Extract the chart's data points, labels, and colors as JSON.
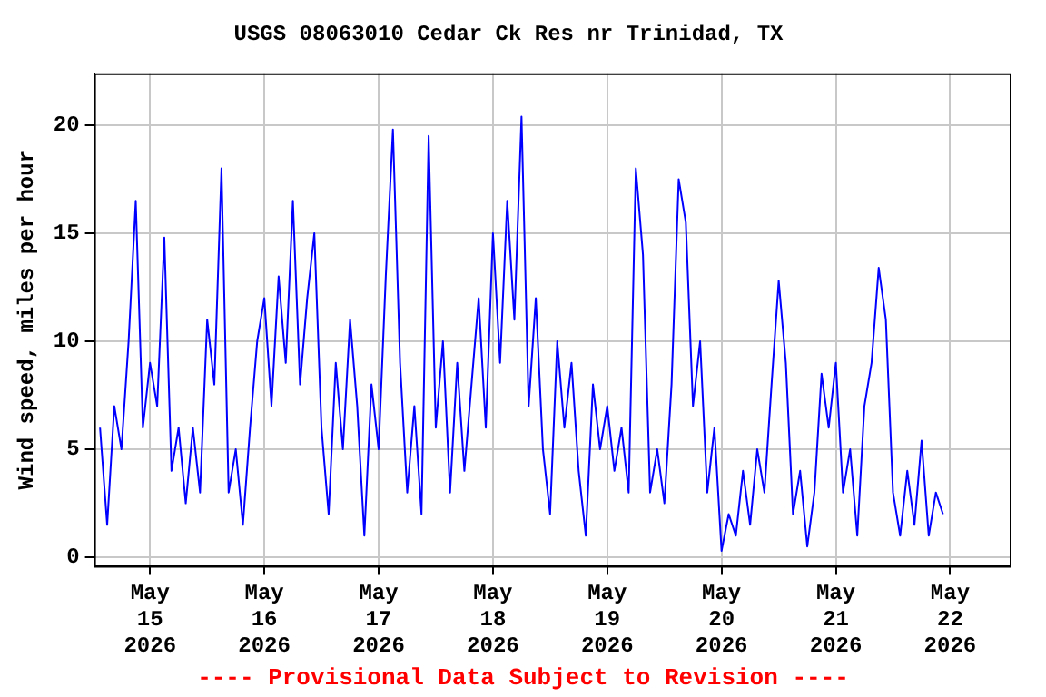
{
  "chart_data": {
    "type": "line",
    "title": "USGS 08063010 Cedar Ck Res nr Trinidad, TX",
    "ylabel": "Wind speed, miles per hour",
    "annotations": [
      "---- Provisional Data Subject to Revision ----"
    ],
    "x": [
      "2026-05-14T13:30",
      "2026-05-14T15:00",
      "2026-05-14T16:30",
      "2026-05-14T18:00",
      "2026-05-14T19:30",
      "2026-05-14T21:00",
      "2026-05-14T22:30",
      "2026-05-15T00:00",
      "2026-05-15T01:30",
      "2026-05-15T03:00",
      "2026-05-15T04:30",
      "2026-05-15T06:00",
      "2026-05-15T07:30",
      "2026-05-15T09:00",
      "2026-05-15T10:30",
      "2026-05-15T12:00",
      "2026-05-15T13:30",
      "2026-05-15T15:00",
      "2026-05-15T16:30",
      "2026-05-15T18:00",
      "2026-05-15T19:30",
      "2026-05-15T21:00",
      "2026-05-15T22:30",
      "2026-05-16T00:00",
      "2026-05-16T01:30",
      "2026-05-16T03:00",
      "2026-05-16T04:30",
      "2026-05-16T06:00",
      "2026-05-16T07:30",
      "2026-05-16T09:00",
      "2026-05-16T10:30",
      "2026-05-16T12:00",
      "2026-05-16T13:30",
      "2026-05-16T15:00",
      "2026-05-16T16:30",
      "2026-05-16T18:00",
      "2026-05-16T19:30",
      "2026-05-16T21:00",
      "2026-05-16T22:30",
      "2026-05-17T00:00",
      "2026-05-17T01:30",
      "2026-05-17T03:00",
      "2026-05-17T04:30",
      "2026-05-17T06:00",
      "2026-05-17T07:30",
      "2026-05-17T09:00",
      "2026-05-17T10:30",
      "2026-05-17T12:00",
      "2026-05-17T13:30",
      "2026-05-17T15:00",
      "2026-05-17T16:30",
      "2026-05-17T18:00",
      "2026-05-17T19:30",
      "2026-05-17T21:00",
      "2026-05-17T22:30",
      "2026-05-18T00:00",
      "2026-05-18T01:30",
      "2026-05-18T03:00",
      "2026-05-18T04:30",
      "2026-05-18T06:00",
      "2026-05-18T07:30",
      "2026-05-18T09:00",
      "2026-05-18T10:30",
      "2026-05-18T12:00",
      "2026-05-18T13:30",
      "2026-05-18T15:00",
      "2026-05-18T16:30",
      "2026-05-18T18:00",
      "2026-05-18T19:30",
      "2026-05-18T21:00",
      "2026-05-18T22:30",
      "2026-05-19T00:00",
      "2026-05-19T01:30",
      "2026-05-19T03:00",
      "2026-05-19T04:30",
      "2026-05-19T06:00",
      "2026-05-19T07:30",
      "2026-05-19T09:00",
      "2026-05-19T10:30",
      "2026-05-19T12:00",
      "2026-05-19T13:30",
      "2026-05-19T15:00",
      "2026-05-19T16:30",
      "2026-05-19T18:00",
      "2026-05-19T19:30",
      "2026-05-19T21:00",
      "2026-05-19T22:30",
      "2026-05-20T00:00",
      "2026-05-20T01:30",
      "2026-05-20T03:00",
      "2026-05-20T04:30",
      "2026-05-20T06:00",
      "2026-05-20T07:30",
      "2026-05-20T09:00",
      "2026-05-20T10:30",
      "2026-05-20T12:00",
      "2026-05-20T13:30",
      "2026-05-20T15:00",
      "2026-05-20T16:30",
      "2026-05-20T18:00",
      "2026-05-20T19:30",
      "2026-05-20T21:00",
      "2026-05-20T22:30",
      "2026-05-21T00:00",
      "2026-05-21T01:30",
      "2026-05-21T03:00",
      "2026-05-21T04:30",
      "2026-05-21T06:00",
      "2026-05-21T07:30",
      "2026-05-21T09:00",
      "2026-05-21T10:30",
      "2026-05-21T12:00",
      "2026-05-21T13:30",
      "2026-05-21T15:00",
      "2026-05-21T16:30",
      "2026-05-21T18:00",
      "2026-05-21T19:30",
      "2026-05-21T21:00",
      "2026-05-21T22:30"
    ],
    "series": [
      {
        "color": "#0000ff",
        "values": [
          6,
          1.5,
          7,
          5,
          10,
          16.5,
          6,
          9,
          7,
          14.8,
          4,
          6,
          2.5,
          6,
          3,
          11,
          8,
          18,
          3,
          5,
          1.5,
          6,
          10,
          12,
          7,
          13,
          9,
          16.5,
          8,
          12,
          15,
          6,
          2,
          9,
          5,
          11,
          7,
          1,
          8,
          5,
          13,
          19.8,
          9,
          3,
          7,
          2,
          19.5,
          6,
          10,
          3,
          9,
          4,
          8,
          12,
          6,
          15,
          9,
          16.5,
          11,
          20.4,
          7,
          12,
          5,
          2,
          10,
          6,
          9,
          4,
          1,
          8,
          5,
          7,
          4,
          6,
          3,
          18,
          14,
          3,
          5,
          2.5,
          8,
          17.5,
          15.5,
          7,
          10,
          3,
          6,
          0.3,
          2,
          1,
          4,
          1.5,
          5,
          3,
          8,
          12.8,
          9,
          2,
          4,
          0.5,
          3,
          8.5,
          6,
          9,
          3,
          5,
          1,
          7,
          9,
          13.4,
          11,
          3,
          1,
          4,
          1.5,
          5.4,
          1,
          3,
          2
        ]
      }
    ],
    "xlim": [
      "2026-05-14T12:15",
      "2026-05-22T12:30"
    ],
    "xticks": [
      {
        "value": "2026-05-15",
        "label": "May 15 2026"
      },
      {
        "value": "2026-05-16",
        "label": "May 16 2026"
      },
      {
        "value": "2026-05-17",
        "label": "May 17 2026"
      },
      {
        "value": "2026-05-18",
        "label": "May 18 2026"
      },
      {
        "value": "2026-05-19",
        "label": "May 19 2026"
      },
      {
        "value": "2026-05-20",
        "label": "May 20 2026"
      },
      {
        "value": "2026-05-21",
        "label": "May 21 2026"
      },
      {
        "value": "2026-05-22",
        "label": "May 22 2026"
      }
    ],
    "ylim": [
      -0.4,
      22.4
    ],
    "yticks": [
      0,
      5,
      10,
      15,
      20
    ],
    "grid": true,
    "legend": false,
    "marker": "none",
    "line_style": "solid"
  }
}
